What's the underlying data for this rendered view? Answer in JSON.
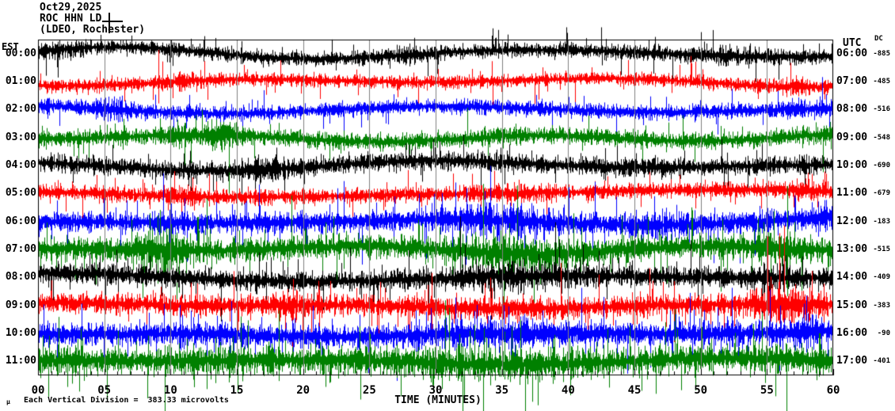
{
  "header": {
    "date": "Oct29,2025",
    "station": "ROC HHN LD",
    "location": "(LDEO, Rochester)"
  },
  "left_axis": {
    "label": "EST",
    "times": [
      "00:00",
      "01:00",
      "02:00",
      "03:00",
      "04:00",
      "05:00",
      "06:00",
      "07:00",
      "08:00",
      "09:00",
      "10:00",
      "11:00"
    ]
  },
  "right_axis": {
    "label": "UTC",
    "dc_label": "DC",
    "times": [
      "06:00",
      "07:00",
      "08:00",
      "09:00",
      "10:00",
      "11:00",
      "12:00",
      "13:00",
      "14:00",
      "15:00",
      "16:00",
      "17:00"
    ],
    "dc_values": [
      "-885",
      "-485",
      "-516",
      "-548",
      "-690",
      "-679",
      "-183",
      "-515",
      "-409",
      "-383",
      "-90",
      "-401"
    ]
  },
  "x_axis": {
    "labels": [
      "00",
      "05",
      "10",
      "15",
      "20",
      "25",
      "30",
      "35",
      "40",
      "45",
      "50",
      "55",
      "60"
    ],
    "title": "TIME (MINUTES)"
  },
  "footer": {
    "micro_symbol": "µ",
    "scale_text": "Each Vertical Division =  383.33 microvolts"
  },
  "colors": {
    "black": "#000000",
    "red": "#ff0000",
    "blue": "#0000ff",
    "green": "#008000",
    "grid": "#808080",
    "background": "#ffffff"
  },
  "chart_data": {
    "type": "line",
    "subtype": "seismogram-helicorder",
    "title": "ROC HHN LD (LDEO, Rochester) Oct29,2025",
    "xlabel": "TIME (MINUTES)",
    "x_range_minutes": [
      0,
      60
    ],
    "major_tick_every_min": 5,
    "minor_tick_every_min": 1,
    "grid": "vertical gray lines every 5 minutes",
    "vertical_division_microvolts": 383.33,
    "row_order_colors": [
      "black",
      "red",
      "blue",
      "green"
    ],
    "rows": [
      {
        "est": "00:00",
        "utc": "06:00",
        "dc": "-885",
        "color": "black",
        "amp": 8,
        "wander": 7,
        "spike": 0.05,
        "seed": 11,
        "bursts": [
          [
            2,
            1.5,
            1.5
          ],
          [
            27,
            2,
            1.3
          ],
          [
            52,
            2,
            1.4
          ]
        ]
      },
      {
        "est": "01:00",
        "utc": "07:00",
        "dc": "-485",
        "color": "red",
        "amp": 7.5,
        "wander": 6,
        "spike": 0.05,
        "seed": 22,
        "bursts": [
          [
            11,
            1,
            1.5
          ],
          [
            57,
            1.5,
            1.5
          ]
        ]
      },
      {
        "est": "02:00",
        "utc": "08:00",
        "dc": "-516",
        "color": "blue",
        "amp": 8.5,
        "wander": 6,
        "spike": 0.05,
        "seed": 33,
        "bursts": [
          [
            6,
            1,
            1.6
          ],
          [
            58,
            1,
            1.5
          ]
        ]
      },
      {
        "est": "03:00",
        "utc": "09:00",
        "dc": "-548",
        "color": "green",
        "amp": 9.5,
        "wander": 5,
        "spike": 0.05,
        "seed": 44,
        "bursts": [
          [
            13.8,
            0.8,
            2.6
          ],
          [
            10.5,
            0.6,
            1.7
          ],
          [
            59,
            1,
            1.4
          ]
        ]
      },
      {
        "est": "04:00",
        "utc": "10:00",
        "dc": "-690",
        "color": "black",
        "amp": 10,
        "wander": 6,
        "spike": 0.05,
        "seed": 55,
        "bursts": [
          [
            17,
            1.2,
            1.6
          ],
          [
            45,
            2,
            1.3
          ]
        ]
      },
      {
        "est": "05:00",
        "utc": "11:00",
        "dc": "-679",
        "color": "red",
        "amp": 8.5,
        "wander": 5,
        "spike": 0.06,
        "seed": 66,
        "bursts": [
          [
            11,
            0.8,
            1.7
          ],
          [
            36,
            2,
            1.3
          ],
          [
            58,
            1,
            1.5
          ]
        ]
      },
      {
        "est": "06:00",
        "utc": "12:00",
        "dc": "-183",
        "color": "blue",
        "amp": 12,
        "wander": 5,
        "spike": 0.07,
        "seed": 77,
        "bursts": [
          [
            35,
            3,
            1.6
          ],
          [
            47,
            2,
            1.3
          ],
          [
            59,
            0.8,
            1.5
          ]
        ]
      },
      {
        "est": "07:00",
        "utc": "13:00",
        "dc": "-515",
        "color": "green",
        "amp": 13,
        "wander": 5,
        "spike": 0.08,
        "seed": 88,
        "bursts": [
          [
            9.5,
            1.3,
            2.1
          ],
          [
            35,
            3,
            1.6
          ],
          [
            55,
            2,
            1.5
          ]
        ]
      },
      {
        "est": "08:00",
        "utc": "14:00",
        "dc": "-409",
        "color": "black",
        "amp": 11.5,
        "wander": 5,
        "spike": 0.06,
        "seed": 99,
        "bursts": [
          [
            36,
            3,
            1.6
          ],
          [
            55,
            1.5,
            1.3
          ]
        ]
      },
      {
        "est": "09:00",
        "utc": "15:00",
        "dc": "-383",
        "color": "red",
        "amp": 11.5,
        "wander": 4,
        "spike": 0.07,
        "seed": 110,
        "bursts": [
          [
            19,
            1,
            1.5
          ],
          [
            56,
            1.5,
            2.0
          ],
          [
            35,
            3,
            1.2
          ]
        ]
      },
      {
        "est": "10:00",
        "utc": "16:00",
        "dc": "-90",
        "color": "blue",
        "amp": 13,
        "wander": 4,
        "spike": 0.08,
        "seed": 121,
        "bursts": [
          [
            35,
            4,
            1.35
          ],
          [
            58,
            1,
            1.5
          ]
        ]
      },
      {
        "est": "11:00",
        "utc": "17:00",
        "dc": "-401",
        "color": "green",
        "amp": 15,
        "wander": 4,
        "spike": 0.09,
        "seed": 132,
        "bursts": [
          [
            35,
            5,
            1.3
          ],
          [
            12,
            2,
            1.2
          ]
        ]
      }
    ]
  }
}
